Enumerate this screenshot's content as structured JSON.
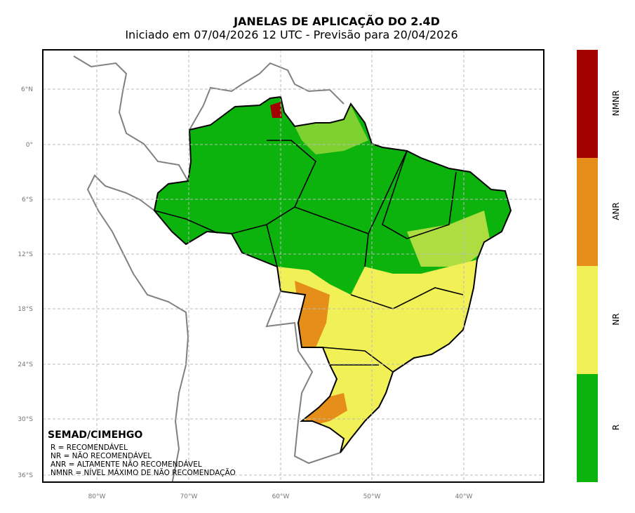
{
  "title": "JANELAS DE APLICAÇÃO DO 2.4D",
  "subtitle": "Iniciado em 07/04/2026 12 UTC - Previsão para 20/04/2026",
  "lat_ticks": [
    "6°N",
    "0°",
    "6°S",
    "12°S",
    "18°S",
    "24°S",
    "30°S",
    "36°S"
  ],
  "lon_ticks": [
    "80°W",
    "70°W",
    "60°W",
    "50°W",
    "40°W"
  ],
  "colorbar": [
    {
      "label": "NMNR",
      "color": "#a30000"
    },
    {
      "label": "ANR",
      "color": "#e58e1a"
    },
    {
      "label": "NR",
      "color": "#f2f057"
    },
    {
      "label": "R",
      "color": "#0db30d"
    }
  ],
  "legend": [
    "R = RECOMENDÁVEL",
    "NR = NÃO RECOMENDÁVEL",
    "ANR = ALTAMENTE NÃO RECOMENDÁVEL",
    "NMNR = NÍVEL MÁXIMO DE NÃO RECOMENDAÇÃO"
  ],
  "credit": "SEMAD/CIMEHGO"
}
